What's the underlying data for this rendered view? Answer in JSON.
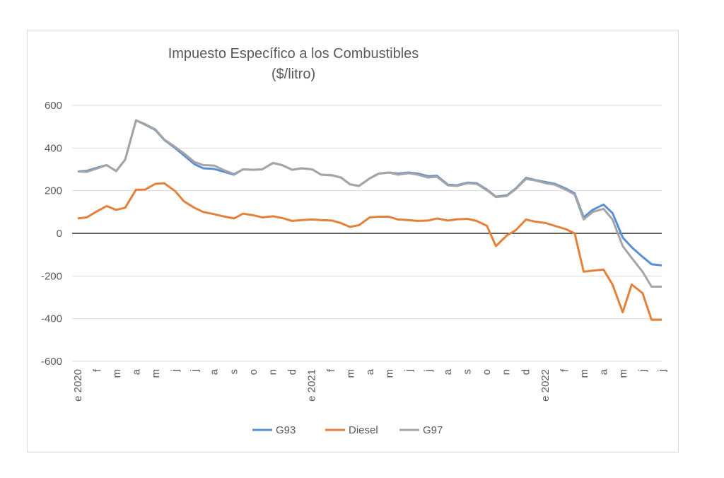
{
  "chart_data": {
    "type": "line",
    "title": "Impuesto Específico a los Combustibles",
    "subtitle": "($/litro)",
    "xlabel": "",
    "ylabel": "",
    "ylim": [
      -600,
      600
    ],
    "yticks": [
      600,
      400,
      200,
      0,
      -200,
      -400,
      -600
    ],
    "xlim": [
      "2020-01-01",
      "2022-07-01"
    ],
    "xtick_labels": [
      "e 2020",
      "f",
      "m",
      "a",
      "m",
      "j",
      "j",
      "a",
      "s",
      "o",
      "n",
      "d",
      "e 2021",
      "f",
      "m",
      "a",
      "m",
      "j",
      "j",
      "a",
      "s",
      "o",
      "n",
      "d",
      "e 2022",
      "f",
      "m",
      "a",
      "m",
      "j",
      "j"
    ],
    "grid": true,
    "legend": "bottom",
    "x": [
      "2020-01-01",
      "2020-01-15",
      "2020-02-01",
      "2020-02-15",
      "2020-03-01",
      "2020-03-15",
      "2020-04-01",
      "2020-04-15",
      "2020-05-01",
      "2020-05-15",
      "2020-06-01",
      "2020-06-15",
      "2020-07-01",
      "2020-07-15",
      "2020-08-01",
      "2020-08-15",
      "2020-09-01",
      "2020-09-15",
      "2020-10-01",
      "2020-10-15",
      "2020-11-01",
      "2020-11-15",
      "2020-12-01",
      "2020-12-15",
      "2021-01-01",
      "2021-01-15",
      "2021-02-01",
      "2021-02-15",
      "2021-03-01",
      "2021-03-15",
      "2021-04-01",
      "2021-04-15",
      "2021-05-01",
      "2021-05-15",
      "2021-06-01",
      "2021-06-15",
      "2021-07-01",
      "2021-07-15",
      "2021-08-01",
      "2021-08-15",
      "2021-09-01",
      "2021-09-15",
      "2021-10-01",
      "2021-10-15",
      "2021-11-01",
      "2021-11-15",
      "2021-12-01",
      "2021-12-15",
      "2022-01-01",
      "2022-01-15",
      "2022-02-01",
      "2022-02-15",
      "2022-03-01",
      "2022-03-15",
      "2022-04-01",
      "2022-04-15",
      "2022-05-01",
      "2022-05-15",
      "2022-06-01",
      "2022-06-15",
      "2022-07-01"
    ],
    "series": [
      {
        "name": "G93",
        "color": "#5b8fd4",
        "values": [
          290,
          293,
          308,
          320,
          292,
          345,
          530,
          510,
          485,
          438,
          400,
          365,
          325,
          305,
          302,
          290,
          275,
          300,
          298,
          300,
          330,
          320,
          298,
          305,
          300,
          275,
          272,
          262,
          230,
          222,
          258,
          280,
          285,
          280,
          285,
          280,
          268,
          270,
          228,
          225,
          238,
          235,
          205,
          172,
          178,
          210,
          260,
          250,
          240,
          232,
          210,
          187,
          75,
          110,
          135,
          95,
          -20,
          -65,
          -110,
          -145,
          -150
        ]
      },
      {
        "name": "Diesel",
        "color": "#e3813a",
        "values": [
          70,
          75,
          105,
          128,
          110,
          120,
          205,
          205,
          232,
          235,
          198,
          150,
          120,
          100,
          90,
          80,
          70,
          92,
          85,
          75,
          80,
          72,
          58,
          62,
          65,
          62,
          60,
          48,
          30,
          38,
          75,
          78,
          78,
          65,
          62,
          58,
          60,
          70,
          60,
          66,
          68,
          58,
          35,
          -60,
          -10,
          15,
          65,
          55,
          48,
          35,
          20,
          0,
          -180,
          -175,
          -170,
          -240,
          -370,
          -240,
          -280,
          -405,
          -405
        ]
      },
      {
        "name": "G97",
        "color": "#a5a5a5",
        "values": [
          290,
          288,
          305,
          320,
          292,
          345,
          530,
          512,
          488,
          440,
          405,
          375,
          335,
          320,
          318,
          298,
          278,
          300,
          298,
          300,
          330,
          320,
          298,
          305,
          300,
          275,
          272,
          262,
          230,
          222,
          258,
          280,
          285,
          275,
          282,
          275,
          262,
          265,
          225,
          222,
          235,
          232,
          202,
          170,
          175,
          208,
          255,
          248,
          235,
          228,
          205,
          182,
          65,
          100,
          115,
          65,
          -60,
          -115,
          -180,
          -250,
          -250
        ]
      }
    ]
  }
}
